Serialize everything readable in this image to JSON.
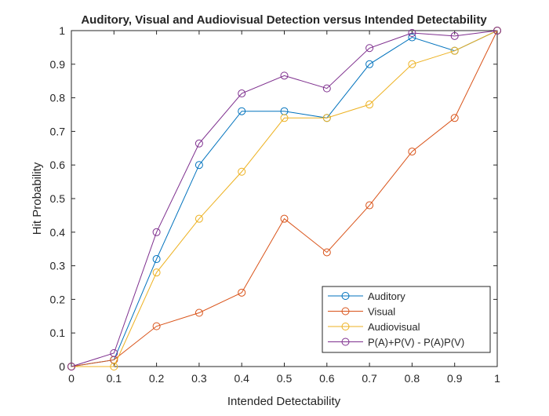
{
  "chart_data": {
    "type": "line",
    "title": "Auditory, Visual and Audiovisual Detection versus Intended Detectability",
    "xlabel": "Intended Detectability",
    "ylabel": "Hit Probability",
    "xlim": [
      0,
      1
    ],
    "ylim": [
      0,
      1
    ],
    "xticks": [
      "0",
      "0.1",
      "0.2",
      "0.3",
      "0.4",
      "0.5",
      "0.6",
      "0.7",
      "0.8",
      "0.9",
      "1"
    ],
    "yticks": [
      "0",
      "0.1",
      "0.2",
      "0.3",
      "0.4",
      "0.5",
      "0.6",
      "0.7",
      "0.8",
      "0.9",
      "1"
    ],
    "grid": false,
    "legend_position": "bottom-right",
    "marker": "circle",
    "x": [
      0,
      0.1,
      0.2,
      0.3,
      0.4,
      0.5,
      0.6,
      0.7,
      0.8,
      0.9,
      1
    ],
    "series": [
      {
        "name": "Auditory",
        "color": "#0072BD",
        "values": [
          0,
          0.02,
          0.32,
          0.6,
          0.76,
          0.76,
          0.74,
          0.9,
          0.98,
          0.94,
          1.0
        ]
      },
      {
        "name": "Visual",
        "color": "#D95319",
        "values": [
          0,
          0.02,
          0.12,
          0.16,
          0.22,
          0.44,
          0.34,
          0.48,
          0.64,
          0.74,
          1.0
        ]
      },
      {
        "name": "Audiovisual",
        "color": "#EDB120",
        "values": [
          0,
          0.0,
          0.28,
          0.44,
          0.58,
          0.74,
          0.74,
          0.78,
          0.9,
          0.94,
          1.0
        ]
      },
      {
        "name": "P(A)+P(V) - P(A)P(V)",
        "color": "#7E2F8E",
        "values": [
          0,
          0.04,
          0.4,
          0.664,
          0.813,
          0.866,
          0.828,
          0.948,
          0.993,
          0.984,
          1.0
        ]
      }
    ]
  }
}
